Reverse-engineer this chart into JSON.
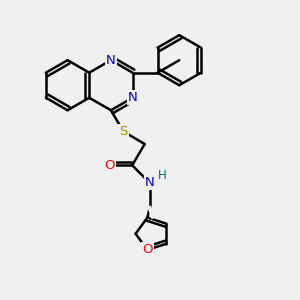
{
  "bg_color": "#f0f0f0",
  "atom_colors": {
    "N": "#0000cc",
    "O_carbonyl": "#ff0000",
    "O_furan": "#ff0000",
    "S": "#999900",
    "H": "#007070",
    "C": "#000000"
  },
  "bond_color": "#000000",
  "bond_width": 1.8,
  "figsize": [
    3.0,
    3.0
  ],
  "dpi": 100
}
